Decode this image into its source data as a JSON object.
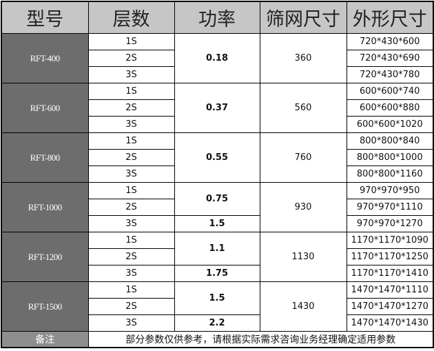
{
  "headers": [
    "型号",
    "层数",
    "功率",
    "筛网尺寸",
    "外形尺寸"
  ],
  "models": [
    {
      "model": "RFT-400",
      "power": [
        {
          "value": "0.18",
          "span": 3
        }
      ],
      "mesh": "360",
      "layers": [
        "1S",
        "2S",
        "3S"
      ],
      "shapes": [
        "720*430*600",
        "720*430*690",
        "720*430*780"
      ]
    },
    {
      "model": "RFT-600",
      "power": [
        {
          "value": "0.37",
          "span": 3
        }
      ],
      "mesh": "560",
      "layers": [
        "1S",
        "2S",
        "3S"
      ],
      "shapes": [
        "600*600*740",
        "600*600*880",
        "600*600*1020"
      ]
    },
    {
      "model": "RFT-800",
      "power": [
        {
          "value": "0.55",
          "span": 3
        }
      ],
      "mesh": "760",
      "layers": [
        "1S",
        "2S",
        "3S"
      ],
      "shapes": [
        "800*800*840",
        "800*800*1000",
        "800*800*1160"
      ]
    },
    {
      "model": "RFT-1000",
      "power": [
        {
          "value": "0.75",
          "span": 2
        },
        {
          "value": "1.5",
          "span": 1
        }
      ],
      "mesh": "930",
      "layers": [
        "1S",
        "2S",
        "3S"
      ],
      "shapes": [
        "970*970*950",
        "970*970*1110",
        "970*970*1270"
      ]
    },
    {
      "model": "RFT-1200",
      "power": [
        {
          "value": "1.1",
          "span": 2
        },
        {
          "value": "1.75",
          "span": 1
        }
      ],
      "mesh": "1130",
      "layers": [
        "1S",
        "2S",
        "3S"
      ],
      "shapes": [
        "1170*1170*1090",
        "1170*1170*1250",
        "1170*1170*1410"
      ]
    },
    {
      "model": "RFT-1500",
      "power": [
        {
          "value": "1.5",
          "span": 2
        },
        {
          "value": "2.2",
          "span": 1
        }
      ],
      "mesh": "1430",
      "layers": [
        "1S",
        "2S",
        "3S"
      ],
      "shapes": [
        "1470*1470*1110",
        "1470*1470*1270",
        "1470*1470*1430"
      ]
    }
  ],
  "footer": {
    "label": "备注",
    "note": "部分参数仅供参考，请根据实际需求咨询业务经理确定适用参数"
  },
  "colors": {
    "header_bg": "#c6c6c6",
    "model_bg": "#6d6d6d",
    "note_label_bg": "#8e8e8e"
  }
}
